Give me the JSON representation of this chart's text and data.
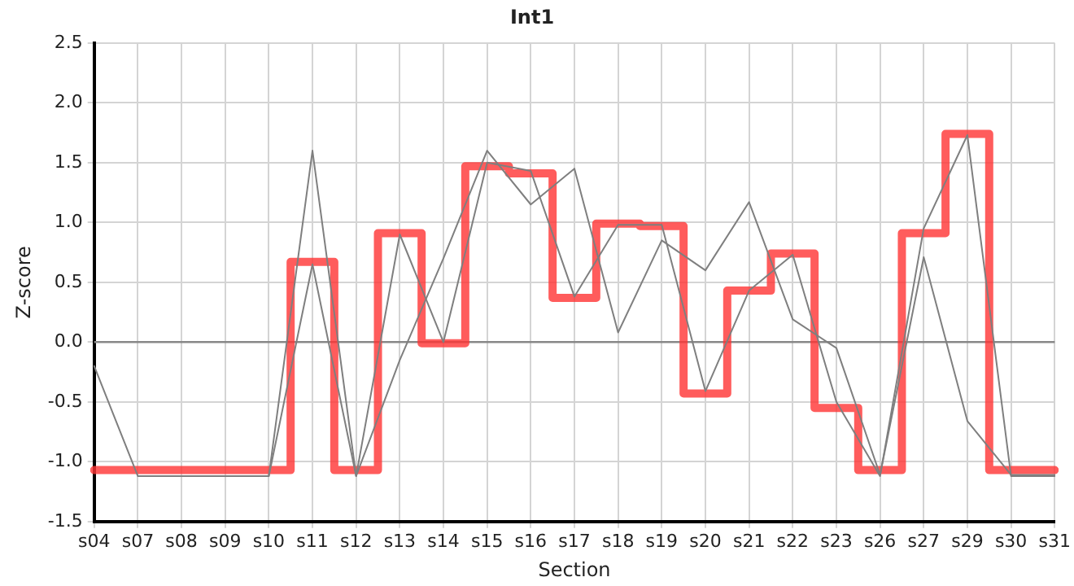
{
  "chart_data": {
    "type": "step",
    "title": "Int1",
    "xlabel": "Section",
    "ylabel": "Z-score",
    "categories": [
      "s04",
      "s07",
      "s08",
      "s09",
      "s10",
      "s11",
      "s12",
      "s13",
      "s14",
      "s15",
      "s16",
      "s17",
      "s18",
      "s19",
      "s20",
      "s21",
      "s22",
      "s23",
      "s26",
      "s27",
      "s29",
      "s30",
      "s31"
    ],
    "series": [
      {
        "type": "line",
        "color": "#7f7f7f",
        "values": [
          -0.2,
          -1.12,
          -1.12,
          -1.12,
          -1.12,
          0.65,
          -1.12,
          0.9,
          0.0,
          1.5,
          1.43,
          0.38,
          0.98,
          0.98,
          -0.41,
          0.43,
          0.73,
          -0.5,
          -1.12,
          0.95,
          1.73,
          -1.12,
          -1.12
        ]
      },
      {
        "type": "line",
        "color": "#7f7f7f",
        "values": [
          null,
          null,
          null,
          null,
          -1.12,
          1.6,
          -1.12,
          -0.15,
          0.7,
          1.6,
          1.15,
          1.45,
          0.08,
          0.85,
          0.6,
          1.17,
          0.19,
          -0.05,
          -1.11,
          0.71,
          -0.66,
          -1.11,
          -1.11
        ]
      },
      {
        "type": "step",
        "color": "#ff3333",
        "values": [
          -1.07,
          -1.07,
          -1.07,
          -1.07,
          -1.07,
          0.67,
          -1.07,
          0.91,
          -0.01,
          1.47,
          1.41,
          0.37,
          0.99,
          0.97,
          -0.43,
          0.43,
          0.74,
          -0.55,
          -1.07,
          0.91,
          1.74,
          -1.07,
          -1.07
        ]
      }
    ],
    "ylim": [
      -1.5,
      2.5
    ],
    "yticks": [
      {
        "value": -1.5,
        "label": "-1.5"
      },
      {
        "value": -1,
        "label": "-1.0"
      },
      {
        "value": -0.5,
        "label": "-0.5"
      },
      {
        "value": 0,
        "label": "0.0"
      },
      {
        "value": 0.5,
        "label": "0.5"
      },
      {
        "value": 1,
        "label": "1.0"
      },
      {
        "value": 1.5,
        "label": "1.5"
      },
      {
        "value": 2,
        "label": "2.0"
      },
      {
        "value": 2.5,
        "label": "2.5"
      }
    ],
    "ref_lines": [
      {
        "axis": "y",
        "value": 0,
        "color": "#888888"
      }
    ],
    "grid": true,
    "legend": false,
    "marker": "none",
    "line_style": "solid"
  }
}
